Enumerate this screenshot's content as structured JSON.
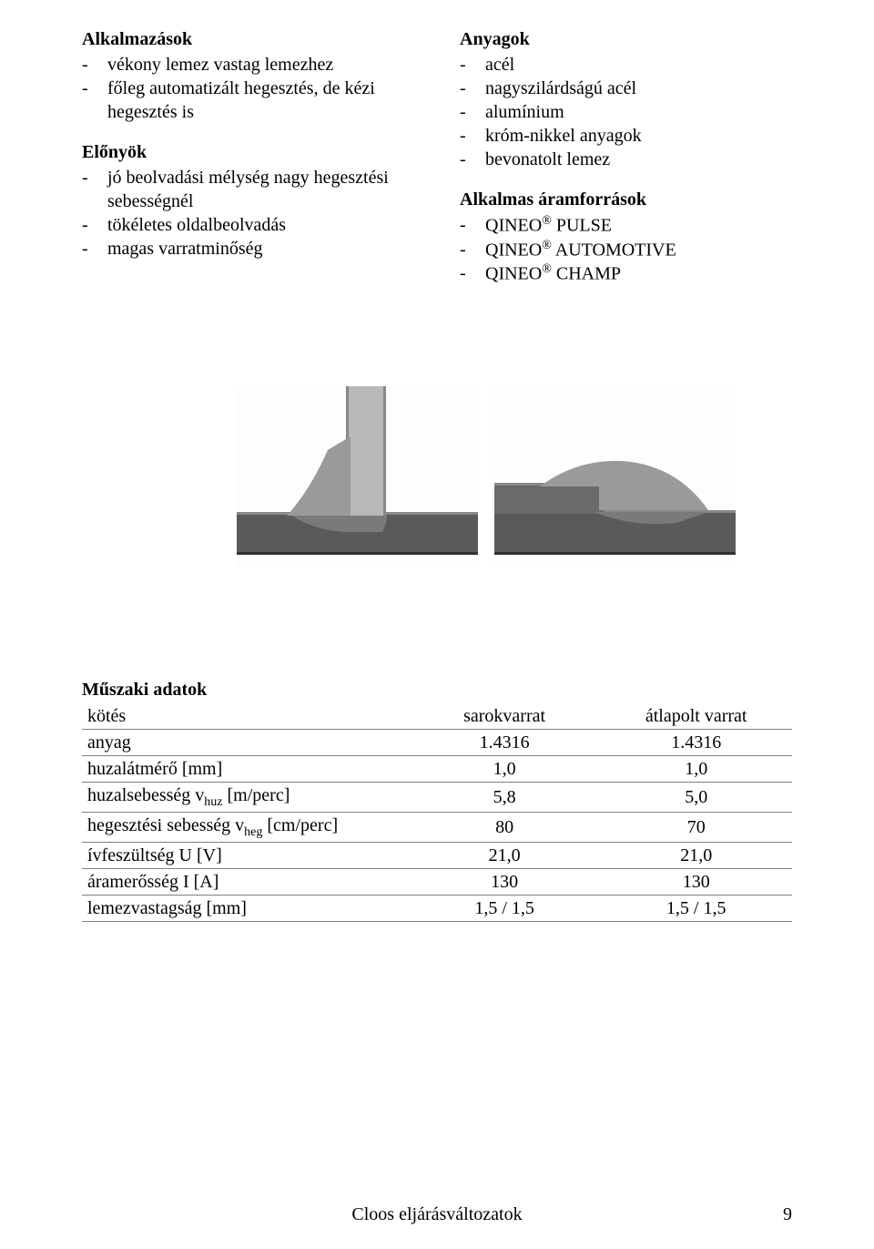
{
  "left_col": {
    "applications": {
      "title": "Alkalmazások",
      "items": [
        "vékony lemez vastag lemezhez",
        "főleg automatizált hegesztés, de kézi hegesztés is"
      ]
    },
    "advantages": {
      "title": "Előnyök",
      "items": [
        "jó beolvadási mélység nagy hegesztési sebességnél",
        "tökéletes oldalbeolvadás",
        "magas varratminőség"
      ]
    }
  },
  "right_col": {
    "materials": {
      "title": "Anyagok",
      "items": [
        "acél",
        "nagyszilárdságú acél",
        "alumínium",
        "króm-nikkel anyagok",
        "bevonatolt lemez"
      ]
    },
    "sources": {
      "title": "Alkalmas áramforrások",
      "items": [
        {
          "pre": "QINEO",
          "sup": "®",
          "post": " PULSE"
        },
        {
          "pre": "QINEO",
          "sup": "®",
          "post": " AUTOMOTIVE"
        },
        {
          "pre": "QINEO",
          "sup": "®",
          "post": " CHAMP"
        }
      ]
    }
  },
  "images": {
    "left": {
      "name": "weld-cross-section-fillet"
    },
    "right": {
      "name": "weld-cross-section-lap"
    }
  },
  "tech_data": {
    "title": "Műszaki adatok",
    "headers": [
      "",
      "sarokvarrat",
      "átlapolt varrat"
    ],
    "rows": [
      {
        "label": "kötés",
        "c2": "sarokvarrat",
        "c3": "átlapolt varrat"
      },
      {
        "label": "anyag",
        "c2": "1.4316",
        "c3": "1.4316"
      },
      {
        "label": "huzalátmérő [mm]",
        "c2": "1,0",
        "c3": "1,0"
      },
      {
        "label_html": "huzalsebesség v<sub>huz</sub> [m/perc]",
        "c2": "5,8",
        "c3": "5,0"
      },
      {
        "label_html": "hegesztési sebesség v<sub>heg</sub> [cm/perc]",
        "c2": "80",
        "c3": "70"
      },
      {
        "label": "ívfeszültség U [V]",
        "c2": "21,0",
        "c3": "21,0"
      },
      {
        "label": "áramerősség I [A]",
        "c2": "130",
        "c3": "130"
      },
      {
        "label": "lemezvastagság [mm]",
        "c2": "1,5 / 1,5",
        "c3": "1,5 / 1,5"
      }
    ]
  },
  "footer": {
    "text": "Cloos eljárásváltozatok",
    "page": "9"
  },
  "colors": {
    "text": "#000000",
    "bg": "#ffffff",
    "rule": "#808080"
  }
}
